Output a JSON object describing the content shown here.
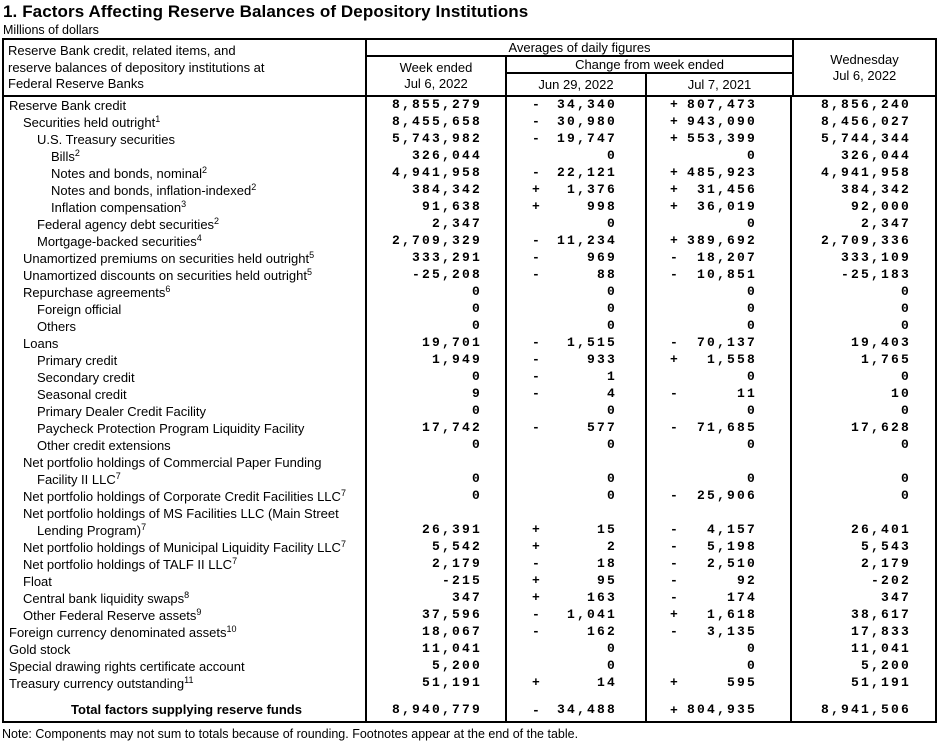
{
  "title": "1. Factors Affecting Reserve Balances of Depository Institutions",
  "subtitle": "Millions of dollars",
  "header": {
    "stub_line1": "Reserve Bank credit, related items, and",
    "stub_line2": "reserve balances of depository institutions at",
    "stub_line3": "Federal Reserve Banks",
    "averages_label": "Averages of daily figures",
    "week_ended_line1": "Week ended",
    "week_ended_line2": "Jul 6, 2022",
    "change_label": "Change from week ended",
    "change_col1": "Jun 29, 2022",
    "change_col2": "Jul 7, 2021",
    "wednesday_line1": "Wednesday",
    "wednesday_line2": "Jul 6, 2022"
  },
  "rows": [
    {
      "label": "Reserve Bank credit",
      "sup": "",
      "label2": "",
      "sup2": "",
      "indent": 0,
      "week": "8,855,279",
      "chg1_sign": "-",
      "chg1": "34,340",
      "chg2_sign": "+",
      "chg2": "807,473",
      "wed": "8,856,240"
    },
    {
      "label": "Securities held outright",
      "sup": "1",
      "label2": "",
      "sup2": "",
      "indent": 1,
      "week": "8,455,658",
      "chg1_sign": "-",
      "chg1": "30,980",
      "chg2_sign": "+",
      "chg2": "943,090",
      "wed": "8,456,027"
    },
    {
      "label": "U.S. Treasury securities",
      "sup": "",
      "label2": "",
      "sup2": "",
      "indent": 2,
      "week": "5,743,982",
      "chg1_sign": "-",
      "chg1": "19,747",
      "chg2_sign": "+",
      "chg2": "553,399",
      "wed": "5,744,344"
    },
    {
      "label": "Bills",
      "sup": "2",
      "label2": "",
      "sup2": "",
      "indent": 3,
      "week": "326,044",
      "chg1_sign": "",
      "chg1": "0",
      "chg2_sign": "",
      "chg2": "0",
      "wed": "326,044"
    },
    {
      "label": "Notes and bonds, nominal",
      "sup": "2",
      "label2": "",
      "sup2": "",
      "indent": 3,
      "week": "4,941,958",
      "chg1_sign": "-",
      "chg1": "22,121",
      "chg2_sign": "+",
      "chg2": "485,923",
      "wed": "4,941,958"
    },
    {
      "label": "Notes and bonds, inflation-indexed",
      "sup": "2",
      "label2": "",
      "sup2": "",
      "indent": 3,
      "week": "384,342",
      "chg1_sign": "+",
      "chg1": "1,376",
      "chg2_sign": "+",
      "chg2": "31,456",
      "wed": "384,342"
    },
    {
      "label": "Inflation compensation",
      "sup": "3",
      "label2": "",
      "sup2": "",
      "indent": 3,
      "week": "91,638",
      "chg1_sign": "+",
      "chg1": "998",
      "chg2_sign": "+",
      "chg2": "36,019",
      "wed": "92,000"
    },
    {
      "label": "Federal agency debt securities",
      "sup": "2",
      "label2": "",
      "sup2": "",
      "indent": 2,
      "week": "2,347",
      "chg1_sign": "",
      "chg1": "0",
      "chg2_sign": "",
      "chg2": "0",
      "wed": "2,347"
    },
    {
      "label": "Mortgage-backed securities",
      "sup": "4",
      "label2": "",
      "sup2": "",
      "indent": 2,
      "week": "2,709,329",
      "chg1_sign": "-",
      "chg1": "11,234",
      "chg2_sign": "+",
      "chg2": "389,692",
      "wed": "2,709,336"
    },
    {
      "label": "Unamortized premiums on securities held outright",
      "sup": "5",
      "label2": "",
      "sup2": "",
      "indent": 1,
      "week": "333,291",
      "chg1_sign": "-",
      "chg1": "969",
      "chg2_sign": "-",
      "chg2": "18,207",
      "wed": "333,109"
    },
    {
      "label": "Unamortized discounts on securities held outright",
      "sup": "5",
      "label2": "",
      "sup2": "",
      "indent": 1,
      "week": "-25,208",
      "chg1_sign": "-",
      "chg1": "88",
      "chg2_sign": "-",
      "chg2": "10,851",
      "wed": "-25,183"
    },
    {
      "label": "Repurchase agreements",
      "sup": "6",
      "label2": "",
      "sup2": "",
      "indent": 1,
      "week": "0",
      "chg1_sign": "",
      "chg1": "0",
      "chg2_sign": "",
      "chg2": "0",
      "wed": "0"
    },
    {
      "label": "Foreign official",
      "sup": "",
      "label2": "",
      "sup2": "",
      "indent": 2,
      "week": "0",
      "chg1_sign": "",
      "chg1": "0",
      "chg2_sign": "",
      "chg2": "0",
      "wed": "0"
    },
    {
      "label": "Others",
      "sup": "",
      "label2": "",
      "sup2": "",
      "indent": 2,
      "week": "0",
      "chg1_sign": "",
      "chg1": "0",
      "chg2_sign": "",
      "chg2": "0",
      "wed": "0"
    },
    {
      "label": "Loans",
      "sup": "",
      "label2": "",
      "sup2": "",
      "indent": 1,
      "week": "19,701",
      "chg1_sign": "-",
      "chg1": "1,515",
      "chg2_sign": "-",
      "chg2": "70,137",
      "wed": "19,403"
    },
    {
      "label": "Primary credit",
      "sup": "",
      "label2": "",
      "sup2": "",
      "indent": 2,
      "week": "1,949",
      "chg1_sign": "-",
      "chg1": "933",
      "chg2_sign": "+",
      "chg2": "1,558",
      "wed": "1,765"
    },
    {
      "label": "Secondary credit",
      "sup": "",
      "label2": "",
      "sup2": "",
      "indent": 2,
      "week": "0",
      "chg1_sign": "-",
      "chg1": "1",
      "chg2_sign": "",
      "chg2": "0",
      "wed": "0"
    },
    {
      "label": "Seasonal credit",
      "sup": "",
      "label2": "",
      "sup2": "",
      "indent": 2,
      "week": "9",
      "chg1_sign": "-",
      "chg1": "4",
      "chg2_sign": "-",
      "chg2": "11",
      "wed": "10"
    },
    {
      "label": "Primary Dealer Credit Facility",
      "sup": "",
      "label2": "",
      "sup2": "",
      "indent": 2,
      "week": "0",
      "chg1_sign": "",
      "chg1": "0",
      "chg2_sign": "",
      "chg2": "0",
      "wed": "0"
    },
    {
      "label": "Paycheck Protection Program Liquidity Facility",
      "sup": "",
      "label2": "",
      "sup2": "",
      "indent": 2,
      "week": "17,742",
      "chg1_sign": "-",
      "chg1": "577",
      "chg2_sign": "-",
      "chg2": "71,685",
      "wed": "17,628"
    },
    {
      "label": "Other credit extensions",
      "sup": "",
      "label2": "",
      "sup2": "",
      "indent": 2,
      "week": "0",
      "chg1_sign": "",
      "chg1": "0",
      "chg2_sign": "",
      "chg2": "0",
      "wed": "0"
    },
    {
      "label": "Net portfolio holdings of Commercial Paper Funding",
      "sup": "",
      "label2": "Facility II LLC",
      "sup2": "7",
      "indent": 1,
      "week": "0",
      "chg1_sign": "",
      "chg1": "0",
      "chg2_sign": "",
      "chg2": "0",
      "wed": "0"
    },
    {
      "label": "Net portfolio holdings of Corporate Credit Facilities LLC",
      "sup": "7",
      "label2": "",
      "sup2": "",
      "indent": 1,
      "week": "0",
      "chg1_sign": "",
      "chg1": "0",
      "chg2_sign": "-",
      "chg2": "25,906",
      "wed": "0"
    },
    {
      "label": "Net portfolio holdings of MS Facilities LLC (Main Street",
      "sup": "",
      "label2": "Lending Program)",
      "sup2": "7",
      "indent": 1,
      "week": "26,391",
      "chg1_sign": "+",
      "chg1": "15",
      "chg2_sign": "-",
      "chg2": "4,157",
      "wed": "26,401"
    },
    {
      "label": "Net portfolio holdings of Municipal Liquidity Facility LLC",
      "sup": "7",
      "label2": "",
      "sup2": "",
      "indent": 1,
      "week": "5,542",
      "chg1_sign": "+",
      "chg1": "2",
      "chg2_sign": "-",
      "chg2": "5,198",
      "wed": "5,543"
    },
    {
      "label": "Net portfolio holdings of TALF II LLC",
      "sup": "7",
      "label2": "",
      "sup2": "",
      "indent": 1,
      "week": "2,179",
      "chg1_sign": "-",
      "chg1": "18",
      "chg2_sign": "-",
      "chg2": "2,510",
      "wed": "2,179"
    },
    {
      "label": "Float",
      "sup": "",
      "label2": "",
      "sup2": "",
      "indent": 1,
      "week": "-215",
      "chg1_sign": "+",
      "chg1": "95",
      "chg2_sign": "-",
      "chg2": "92",
      "wed": "-202"
    },
    {
      "label": "Central bank liquidity swaps",
      "sup": "8",
      "label2": "",
      "sup2": "",
      "indent": 1,
      "week": "347",
      "chg1_sign": "+",
      "chg1": "163",
      "chg2_sign": "-",
      "chg2": "174",
      "wed": "347"
    },
    {
      "label": "Other Federal Reserve assets",
      "sup": "9",
      "label2": "",
      "sup2": "",
      "indent": 1,
      "week": "37,596",
      "chg1_sign": "-",
      "chg1": "1,041",
      "chg2_sign": "+",
      "chg2": "1,618",
      "wed": "38,617"
    },
    {
      "label": "Foreign currency denominated assets",
      "sup": "10",
      "label2": "",
      "sup2": "",
      "indent": 0,
      "week": "18,067",
      "chg1_sign": "-",
      "chg1": "162",
      "chg2_sign": "-",
      "chg2": "3,135",
      "wed": "17,833"
    },
    {
      "label": "Gold stock",
      "sup": "",
      "label2": "",
      "sup2": "",
      "indent": 0,
      "week": "11,041",
      "chg1_sign": "",
      "chg1": "0",
      "chg2_sign": "",
      "chg2": "0",
      "wed": "11,041"
    },
    {
      "label": "Special drawing rights certificate account",
      "sup": "",
      "label2": "",
      "sup2": "",
      "indent": 0,
      "week": "5,200",
      "chg1_sign": "",
      "chg1": "0",
      "chg2_sign": "",
      "chg2": "0",
      "wed": "5,200"
    },
    {
      "label": "Treasury currency outstanding",
      "sup": "11",
      "label2": "",
      "sup2": "",
      "indent": 0,
      "week": "51,191",
      "chg1_sign": "+",
      "chg1": "14",
      "chg2_sign": "+",
      "chg2": "595",
      "wed": "51,191"
    }
  ],
  "total_row": {
    "label": "Total factors supplying reserve funds",
    "week": "8,940,779",
    "chg1_sign": "-",
    "chg1": "34,488",
    "chg2_sign": "+",
    "chg2": "804,935",
    "wed": "8,941,506"
  },
  "note": "Note: Components may not sum to totals because of rounding. Footnotes appear at the end of the table.",
  "colors": {
    "text": "#000000",
    "border": "#000000",
    "background": "#ffffff"
  }
}
